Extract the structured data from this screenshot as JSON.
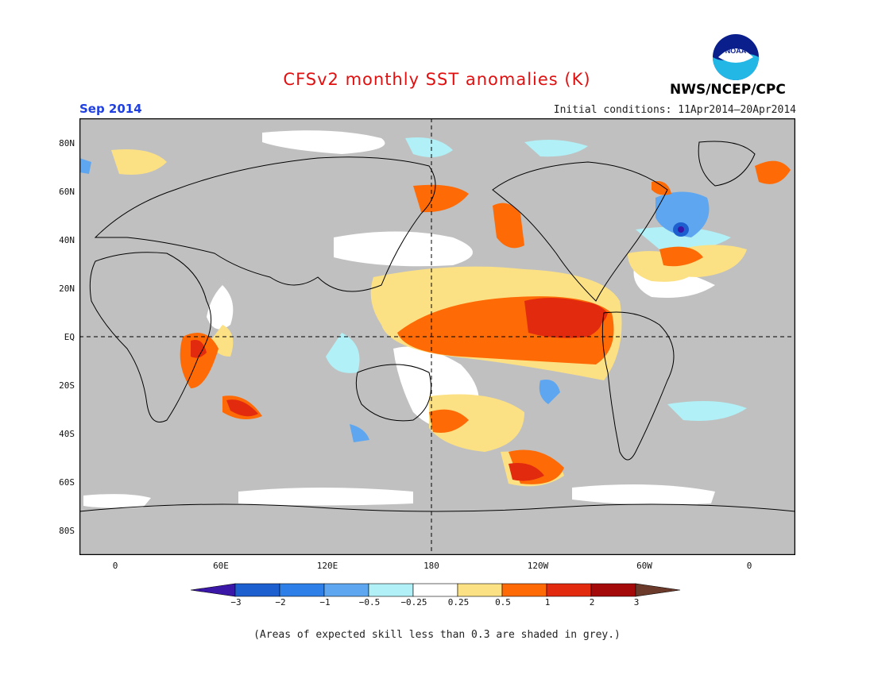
{
  "title": "CFSv2 monthly SST anomalies (K)",
  "month": "Sep 2014",
  "initial_conditions": "Initial conditions: 11Apr2014–20Apr2014",
  "agency": "NWS/NCEP/CPC",
  "logo_text": "NOAA",
  "note": "(Areas of expected skill less than 0.3 are shaded in grey.)",
  "map": {
    "lat_labels": [
      "80N",
      "60N",
      "40N",
      "20N",
      "EQ",
      "20S",
      "40S",
      "60S",
      "80S"
    ],
    "lon_labels": [
      "0",
      "60E",
      "120E",
      "180",
      "120W",
      "60W",
      "0"
    ],
    "grey_fill": "#c0c0c0",
    "land_outline": "#000000"
  },
  "colorbar": {
    "tick_labels": [
      "−3",
      "−2",
      "−1",
      "−0.5",
      "−0.25",
      "0.25",
      "0.5",
      "1",
      "2",
      "3"
    ],
    "colors": [
      "#3a17a6",
      "#1e5fd0",
      "#2e80e8",
      "#5ea7f0",
      "#b0f0f6",
      "#ffffff",
      "#fce184",
      "#fe6a05",
      "#e12a0e",
      "#a50a0a",
      "#6b3a2a"
    ]
  }
}
